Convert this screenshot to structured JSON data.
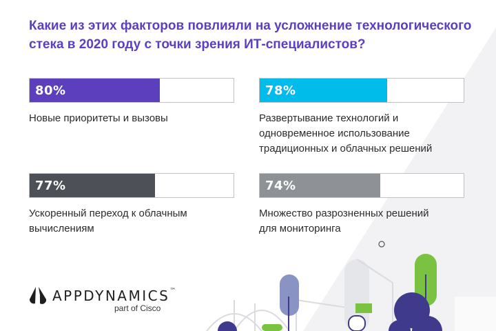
{
  "title_lines": [
    "Какие из этих факторов повлияли на усложнение технологического",
    "стека в 2020 году с точки зрения ИТ-специалистов?"
  ],
  "chart_data": {
    "type": "bar",
    "title": "Какие из этих факторов повлияли на усложнение технологического стека в 2020 году с точки зрения ИТ-специалистов?",
    "categories": [
      "Новые приоритеты и вызовы",
      "Развертывание технологий и одновременное использование традиционных и облачных решений",
      "Ускоренный переход к облачным вычислениям",
      "Множество разрозненных решений для мониторинга"
    ],
    "values": [
      80,
      78,
      77,
      74
    ],
    "unit": "%",
    "ylim": [
      0,
      100
    ]
  },
  "stats": [
    {
      "value": 80,
      "label": "80%",
      "color": "#5b3fbd",
      "desc_lines": [
        "Новые приоритеты и вызовы"
      ]
    },
    {
      "value": 78,
      "label": "78%",
      "color": "#00bcea",
      "desc_lines": [
        "Развертывание технологий и",
        "одновременное использование",
        "традиционных и облачных решений"
      ]
    },
    {
      "value": 77,
      "label": "77%",
      "color": "#4d5157",
      "desc_lines": [
        "Ускоренный переход к облачным",
        "вычислениям"
      ]
    },
    {
      "value": 74,
      "label": "74%",
      "color": "#8e9296",
      "desc_lines": [
        "Множество разрозненных решений",
        "для мониторинга"
      ]
    }
  ],
  "logo": {
    "name": "APPDYNAMICS",
    "tm": "™",
    "subtitle": "part of Cisco"
  },
  "colors": {
    "accent": "#5c3fc0",
    "green": "#7cc242",
    "navy": "#3f3a8c",
    "slate": "#8a94c4"
  }
}
